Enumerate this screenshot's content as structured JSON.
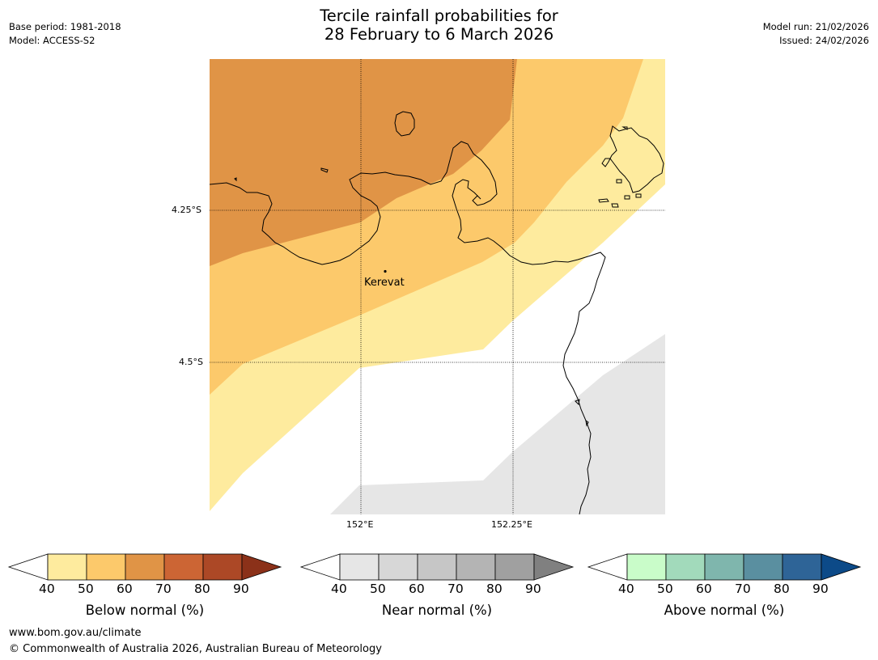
{
  "header": {
    "title_line1": "Tercile rainfall probabilities for",
    "title_line2": "28 February to 6 March 2026",
    "base_period": "Base period: 1981-2018",
    "model": "Model: ACCESS-S2",
    "model_run": "Model run: 21/02/2026",
    "issued": "Issued: 24/02/2026"
  },
  "map": {
    "lat_labels": [
      "4.25°S",
      "4.5°S"
    ],
    "lon_labels": [
      "152°E",
      "152.25°E"
    ],
    "place": "Kerevat",
    "colors": {
      "below_50_60": "#fcc96b",
      "below_60_70": "#e09446",
      "below_40_50": "#feeb9e",
      "near_40_50": "#e6e6e6",
      "land_outline": "#000000"
    }
  },
  "colorbars": [
    {
      "label": "Below normal (%)",
      "ticks": [
        "40",
        "50",
        "60",
        "70",
        "80",
        "90"
      ],
      "colors": [
        "#feeb9e",
        "#fcc96b",
        "#e09446",
        "#cc6534",
        "#ac4826",
        "#8b3119"
      ]
    },
    {
      "label": "Near normal (%)",
      "ticks": [
        "40",
        "50",
        "60",
        "70",
        "80",
        "90"
      ],
      "colors": [
        "#e6e6e6",
        "#d7d7d7",
        "#c6c6c6",
        "#b4b4b4",
        "#a0a0a0",
        "#808080"
      ]
    },
    {
      "label": "Above normal (%)",
      "ticks": [
        "40",
        "50",
        "60",
        "70",
        "80",
        "90"
      ],
      "colors": [
        "#c9fcc9",
        "#a2dabb",
        "#7fb6ad",
        "#5a8fa0",
        "#2e6497",
        "#0c4a88"
      ]
    }
  ],
  "footer": {
    "website": "www.bom.gov.au/climate",
    "copyright": "© Commonwealth of Australia 2026, Australian Bureau of Meteorology"
  }
}
